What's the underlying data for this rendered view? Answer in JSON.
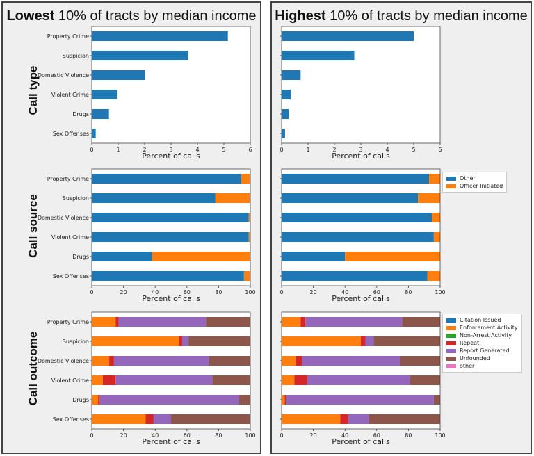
{
  "panels": {
    "left": {
      "title_bold": "Lowest",
      "title_rest": " 10% of tracts by median income"
    },
    "right": {
      "title_bold": "Highest",
      "title_rest": " 10% of tracts by median income"
    }
  },
  "row_labels": {
    "call_type": "Call type",
    "call_source": "Call source",
    "call_outcome": "Call outcome"
  },
  "colors": {
    "blue": "#1f77b4",
    "orange": "#ff7f0e",
    "green": "#2ca02c",
    "red": "#d62728",
    "purple": "#9467bd",
    "brown": "#8c564b",
    "pink": "#e377c2"
  },
  "legends": {
    "source": [
      {
        "label": "Other",
        "color": "#1f77b4"
      },
      {
        "label": "Officer Initiated",
        "color": "#ff7f0e"
      }
    ],
    "outcome": [
      {
        "label": "Citation Issued",
        "color": "#1f77b4"
      },
      {
        "label": "Enforcement Activity",
        "color": "#ff7f0e"
      },
      {
        "label": "Non-Arrest Activity",
        "color": "#2ca02c"
      },
      {
        "label": "Repeat",
        "color": "#d62728"
      },
      {
        "label": "Report Generated",
        "color": "#9467bd"
      },
      {
        "label": "Unfounded",
        "color": "#8c564b"
      },
      {
        "label": "other",
        "color": "#e377c2"
      }
    ]
  },
  "chart_data": [
    {
      "id": "left-call-type",
      "panel": "left",
      "row": "type",
      "type": "bar",
      "categories": [
        "Property Crime",
        "Suspicion",
        "Domestic Violence",
        "Violent Crime",
        "Drugs",
        "Sex Offenses"
      ],
      "values": [
        5.15,
        3.65,
        2.0,
        0.95,
        0.65,
        0.15
      ],
      "xlabel": "Percent of calls",
      "xlim": [
        0,
        6
      ],
      "xticks": [
        0,
        1,
        2,
        3,
        4,
        5,
        6
      ]
    },
    {
      "id": "right-call-type",
      "panel": "right",
      "row": "type",
      "type": "bar",
      "categories": [
        "Property Crime",
        "Suspicion",
        "Domestic Violence",
        "Violent Crime",
        "Drugs",
        "Sex Offenses"
      ],
      "values": [
        5.0,
        2.75,
        0.72,
        0.35,
        0.27,
        0.13
      ],
      "xlabel": "Percent of calls",
      "xlim": [
        0,
        6
      ],
      "xticks": [
        0,
        1,
        2,
        3,
        4,
        5,
        6
      ]
    },
    {
      "id": "left-call-source",
      "panel": "left",
      "row": "source",
      "type": "bar",
      "stacked": true,
      "categories": [
        "Property Crime",
        "Suspicion",
        "Domestic Violence",
        "Violent Crime",
        "Drugs",
        "Sex Offenses"
      ],
      "series": [
        {
          "name": "Other",
          "color": "#1f77b4",
          "values": [
            94,
            78,
            99,
            99,
            38,
            96
          ]
        },
        {
          "name": "Officer Initiated",
          "color": "#ff7f0e",
          "values": [
            6,
            22,
            1,
            1,
            62,
            4
          ]
        }
      ],
      "xlabel": "Percent of calls",
      "xlim": [
        0,
        100
      ],
      "xticks": [
        0,
        20,
        40,
        60,
        80,
        100
      ]
    },
    {
      "id": "right-call-source",
      "panel": "right",
      "row": "source",
      "type": "bar",
      "stacked": true,
      "categories": [
        "Property Crime",
        "Suspicion",
        "Domestic Violence",
        "Violent Crime",
        "Drugs",
        "Sex Offenses"
      ],
      "series": [
        {
          "name": "Other",
          "color": "#1f77b4",
          "values": [
            93,
            86,
            95,
            96,
            40,
            92
          ]
        },
        {
          "name": "Officer Initiated",
          "color": "#ff7f0e",
          "values": [
            7,
            14,
            5,
            4,
            60,
            8
          ]
        }
      ],
      "xlabel": "Percent of calls",
      "xlim": [
        0,
        100
      ],
      "xticks": [
        0,
        20,
        40,
        60,
        80,
        100
      ]
    },
    {
      "id": "left-call-outcome",
      "panel": "left",
      "row": "outcome",
      "type": "bar",
      "stacked": true,
      "categories": [
        "Property Crime",
        "Suspicion",
        "Domestic Violence",
        "Violent Crime",
        "Drugs",
        "Sex Offenses"
      ],
      "series": [
        {
          "name": "Citation Issued",
          "color": "#1f77b4",
          "values": [
            0,
            0,
            0,
            0,
            0,
            0
          ]
        },
        {
          "name": "Enforcement Activity",
          "color": "#ff7f0e",
          "values": [
            15,
            55,
            11,
            7,
            4,
            34
          ]
        },
        {
          "name": "Non-Arrest Activity",
          "color": "#2ca02c",
          "values": [
            0,
            0,
            0,
            0,
            0,
            0
          ]
        },
        {
          "name": "Repeat",
          "color": "#d62728",
          "values": [
            2,
            2,
            3,
            8,
            1,
            5
          ]
        },
        {
          "name": "Report Generated",
          "color": "#9467bd",
          "values": [
            55,
            4,
            60,
            61,
            88,
            11
          ]
        },
        {
          "name": "Unfounded",
          "color": "#8c564b",
          "values": [
            28,
            39,
            26,
            24,
            7,
            50
          ]
        },
        {
          "name": "other",
          "color": "#e377c2",
          "values": [
            0,
            0,
            0,
            0,
            0,
            0
          ]
        }
      ],
      "xlabel": "Percent of calls",
      "xlim": [
        0,
        100
      ],
      "xticks": [
        0,
        20,
        40,
        60,
        80,
        100
      ]
    },
    {
      "id": "right-call-outcome",
      "panel": "right",
      "row": "outcome",
      "type": "bar",
      "stacked": true,
      "categories": [
        "Property Crime",
        "Suspicion",
        "Domestic Violence",
        "Violent Crime",
        "Drugs",
        "Sex Offenses"
      ],
      "series": [
        {
          "name": "Citation Issued",
          "color": "#1f77b4",
          "values": [
            0,
            0,
            0,
            0,
            0,
            0
          ]
        },
        {
          "name": "Enforcement Activity",
          "color": "#ff7f0e",
          "values": [
            12,
            50,
            9,
            8,
            2,
            37
          ]
        },
        {
          "name": "Non-Arrest Activity",
          "color": "#2ca02c",
          "values": [
            0,
            0,
            0,
            0,
            0,
            0
          ]
        },
        {
          "name": "Repeat",
          "color": "#d62728",
          "values": [
            3,
            3,
            4,
            8,
            1,
            5
          ]
        },
        {
          "name": "Report Generated",
          "color": "#9467bd",
          "values": [
            61,
            5,
            62,
            65,
            93,
            13
          ]
        },
        {
          "name": "Unfounded",
          "color": "#8c564b",
          "values": [
            24,
            42,
            25,
            19,
            4,
            45
          ]
        },
        {
          "name": "other",
          "color": "#e377c2",
          "values": [
            0,
            0,
            0,
            0,
            0,
            0
          ]
        }
      ],
      "xlabel": "Percent of calls",
      "xlim": [
        0,
        100
      ],
      "xticks": [
        0,
        20,
        40,
        60,
        80,
        100
      ]
    }
  ]
}
